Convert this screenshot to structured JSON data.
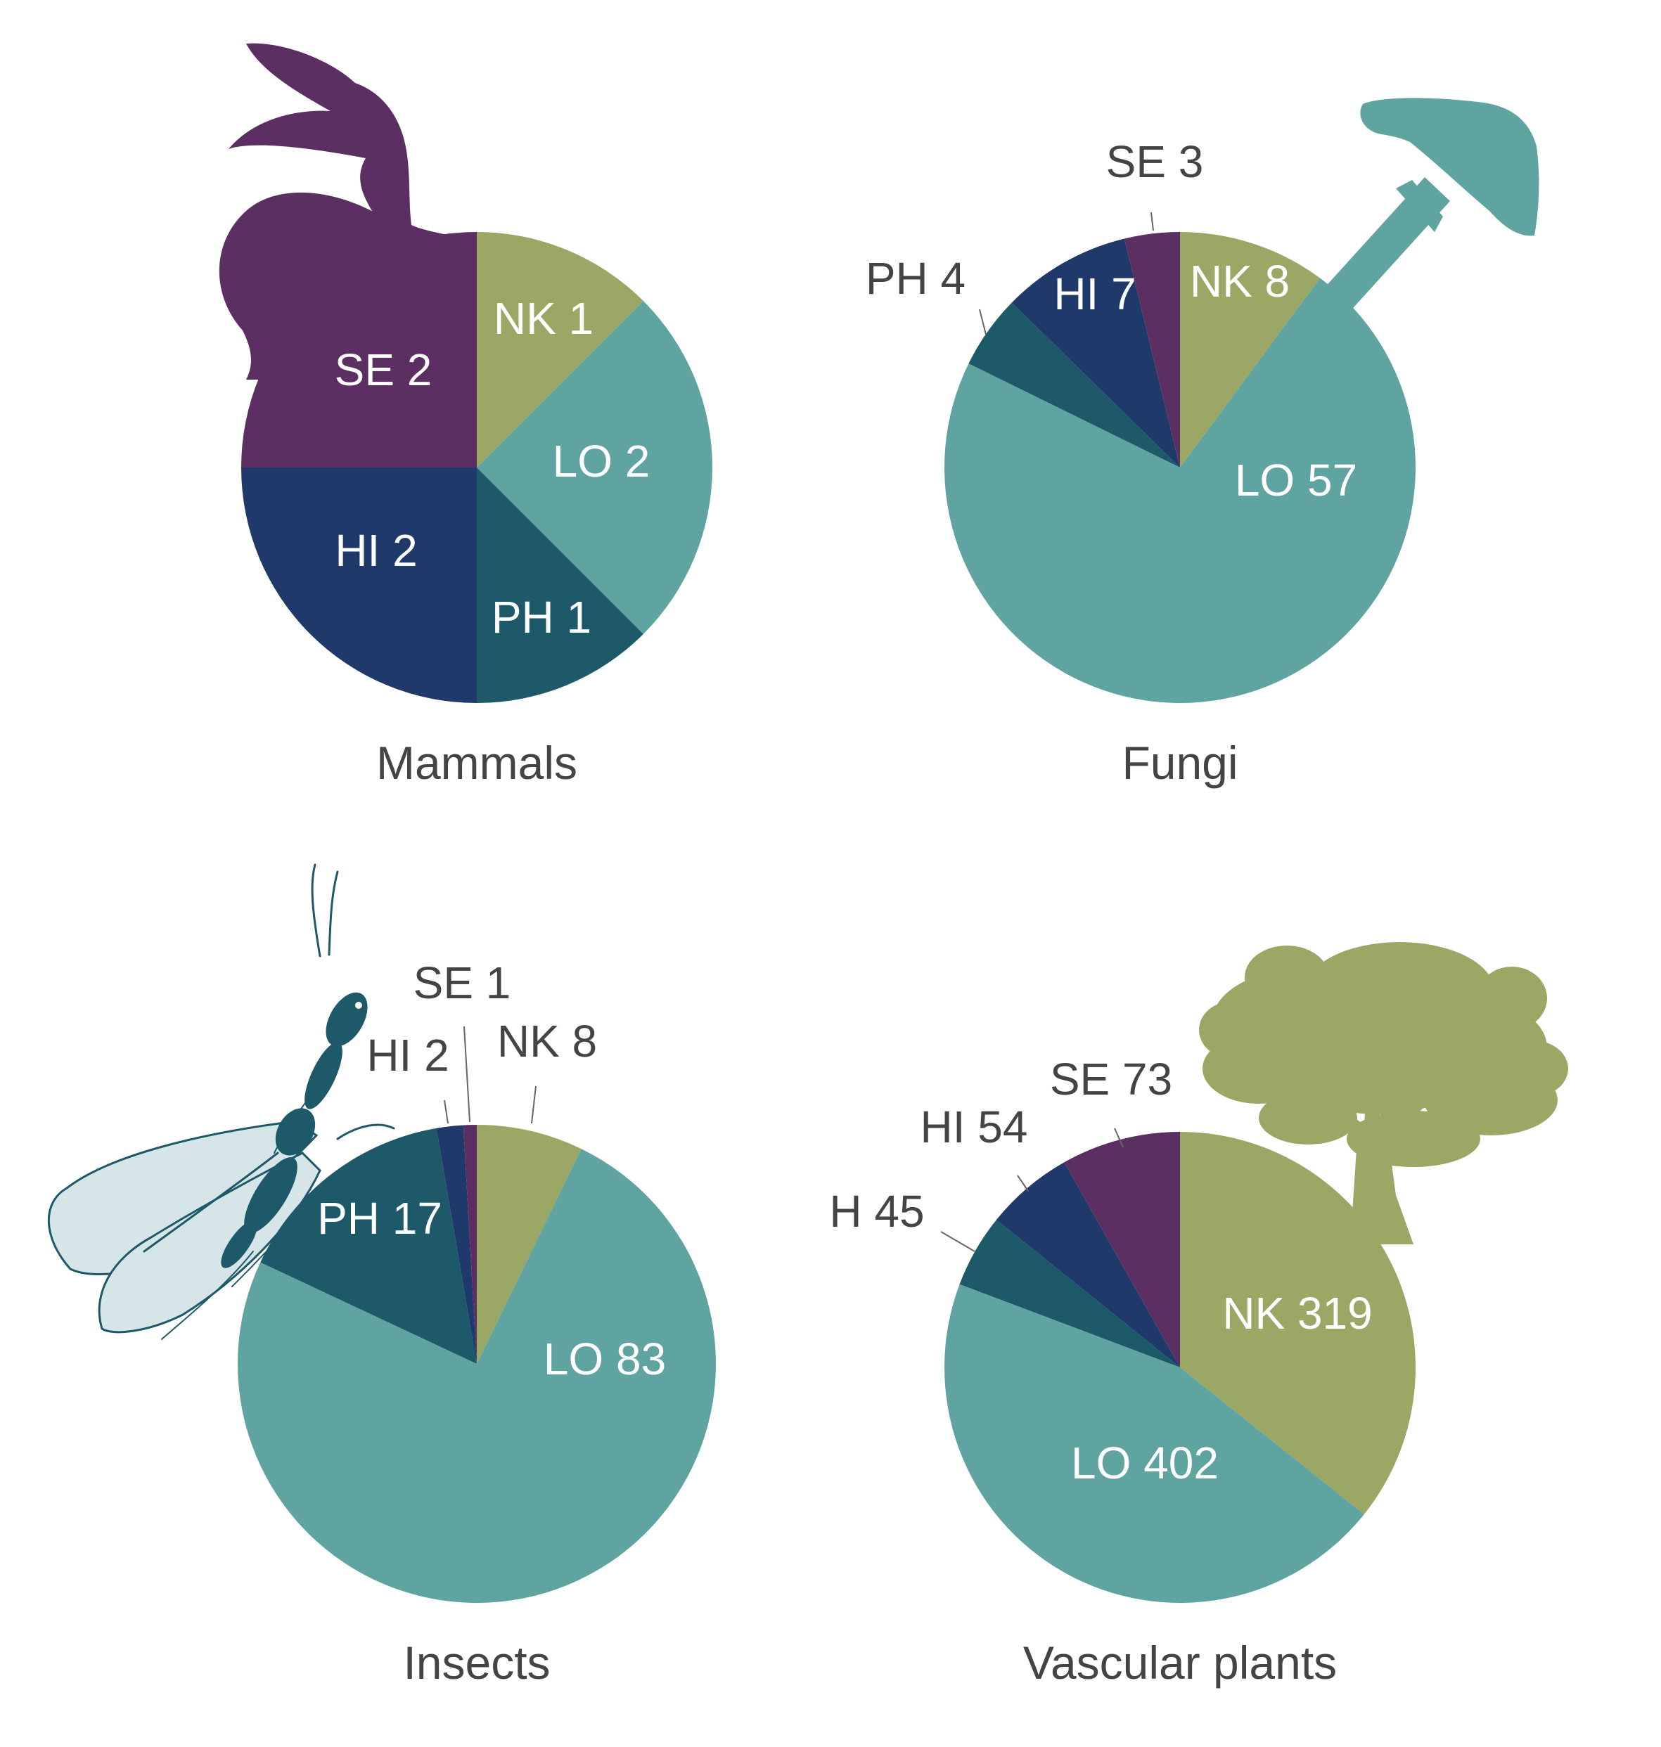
{
  "colors": {
    "NK": "#9BA865",
    "LO": "#60A4A2",
    "PH": "#1D5969",
    "HI": "#1F396A",
    "SE": "#5C2F62",
    "label_inside": "#FFFFFF",
    "label_outside": "#444444",
    "leader": "#666666"
  },
  "icons": {
    "mammals": "rabbit-silhouette-icon",
    "fungi": "mushroom-silhouette-icon",
    "insects": "winged-insect-icon",
    "vascular_plants": "tree-silhouette-icon"
  },
  "chart_data": [
    {
      "type": "pie",
      "title": "Mammals",
      "start": "12 o'clock, clockwise",
      "slices": [
        {
          "key": "NK",
          "value": 1,
          "label": "NK 1",
          "placement": "inside"
        },
        {
          "key": "LO",
          "value": 2,
          "label": "LO 2",
          "placement": "inside"
        },
        {
          "key": "PH",
          "value": 1,
          "label": "PH 1",
          "placement": "inside"
        },
        {
          "key": "HI",
          "value": 2,
          "label": "HI 2",
          "placement": "inside"
        },
        {
          "key": "SE",
          "value": 2,
          "label": "SE 2",
          "placement": "inside"
        }
      ]
    },
    {
      "type": "pie",
      "title": "Fungi",
      "start": "12 o'clock, clockwise",
      "slices": [
        {
          "key": "NK",
          "value": 8,
          "label": "NK 8",
          "placement": "inside"
        },
        {
          "key": "LO",
          "value": 57,
          "label": "LO 57",
          "placement": "inside"
        },
        {
          "key": "PH",
          "value": 4,
          "label": "PH 4",
          "placement": "outside"
        },
        {
          "key": "HI",
          "value": 7,
          "label": "HI 7",
          "placement": "inside"
        },
        {
          "key": "SE",
          "value": 3,
          "label": "SE 3",
          "placement": "outside"
        }
      ]
    },
    {
      "type": "pie",
      "title": "Insects",
      "start": "12 o'clock, clockwise",
      "slices": [
        {
          "key": "NK",
          "value": 8,
          "label": "NK 8",
          "placement": "outside"
        },
        {
          "key": "LO",
          "value": 83,
          "label": "LO 83",
          "placement": "inside"
        },
        {
          "key": "PH",
          "value": 17,
          "label": "PH 17",
          "placement": "inside"
        },
        {
          "key": "HI",
          "value": 2,
          "label": "HI 2",
          "placement": "outside"
        },
        {
          "key": "SE",
          "value": 1,
          "label": "SE 1",
          "placement": "outside"
        }
      ]
    },
    {
      "type": "pie",
      "title": "Vascular plants",
      "start": "12 o'clock, clockwise",
      "slices": [
        {
          "key": "NK",
          "value": 319,
          "label": "NK 319",
          "placement": "inside"
        },
        {
          "key": "LO",
          "value": 402,
          "label": "LO 402",
          "placement": "inside"
        },
        {
          "key": "PH",
          "value": 45,
          "label": "H 45",
          "placement": "outside"
        },
        {
          "key": "HI",
          "value": 54,
          "label": "HI 54",
          "placement": "outside"
        },
        {
          "key": "SE",
          "value": 73,
          "label": "SE 73",
          "placement": "outside"
        }
      ]
    }
  ]
}
